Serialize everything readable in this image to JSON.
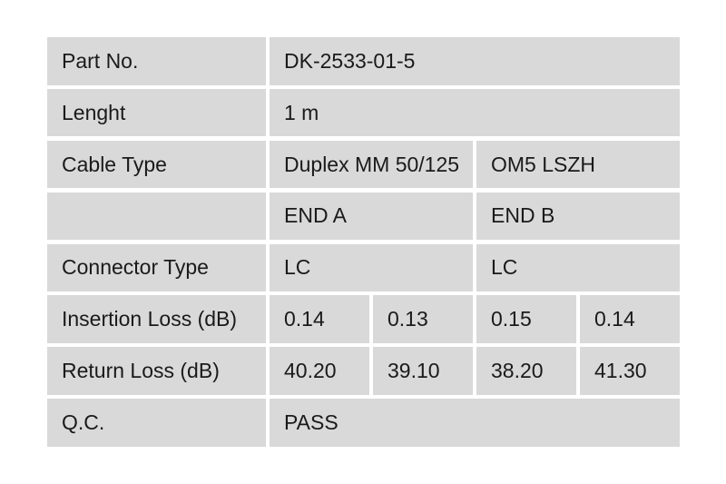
{
  "page": {
    "background": "#ffffff"
  },
  "table": {
    "cell_background": "#d9d9d9",
    "gutter_color": "#ffffff",
    "text_color": "#1a1a1a",
    "rows": [
      {
        "label": "Part No.",
        "values": [
          {
            "text": "DK-2533-01-5"
          }
        ]
      },
      {
        "label": "Lenght",
        "values": [
          {
            "text": "1 m"
          }
        ]
      },
      {
        "label": "Cable Type",
        "values": [
          {
            "text": "Duplex MM 50/125"
          },
          {
            "text": "OM5 LSZH"
          }
        ]
      },
      {
        "label": "",
        "values": [
          {
            "text": "END A"
          },
          {
            "text": "END B"
          }
        ]
      },
      {
        "label": "Connector Type",
        "values": [
          {
            "text": "LC"
          },
          {
            "text": "LC"
          }
        ]
      },
      {
        "label": "Insertion Loss (dB)",
        "values": [
          {
            "text": "0.14"
          },
          {
            "text": "0.13"
          },
          {
            "text": "0.15"
          },
          {
            "text": "0.14"
          }
        ]
      },
      {
        "label": "Return Loss (dB)",
        "values": [
          {
            "text": "40.20"
          },
          {
            "text": "39.10"
          },
          {
            "text": "38.20"
          },
          {
            "text": "41.30"
          }
        ]
      },
      {
        "label": "Q.C.",
        "values": [
          {
            "text": "PASS"
          }
        ]
      }
    ]
  }
}
